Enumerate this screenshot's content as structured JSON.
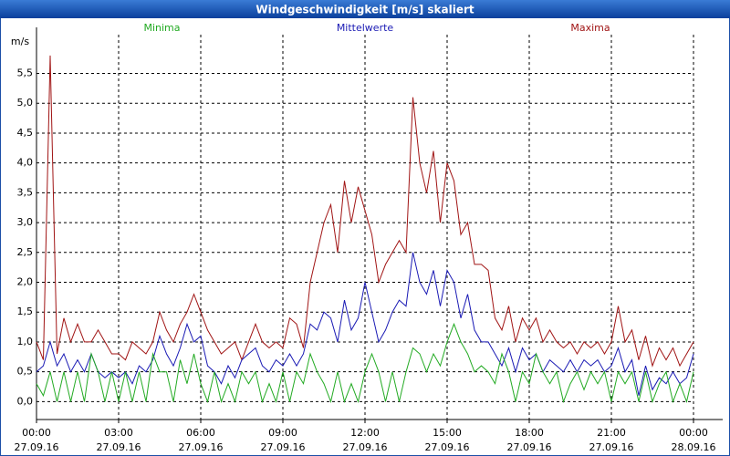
{
  "chart_data": {
    "type": "line",
    "title": "Windgeschwindigkeit [m/s] skaliert",
    "y_label": "m/s",
    "legend": "top",
    "grid": true,
    "xlim": [
      0,
      24
    ],
    "ylim": [
      -0.3,
      6.15
    ],
    "xticks": [
      {
        "value": 0,
        "label": "00:00",
        "date": "27.09.16"
      },
      {
        "value": 3,
        "label": "03:00",
        "date": "27.09.16"
      },
      {
        "value": 6,
        "label": "06:00",
        "date": "27.09.16"
      },
      {
        "value": 9,
        "label": "09:00",
        "date": "27.09.16"
      },
      {
        "value": 12,
        "label": "12:00",
        "date": "27.09.16"
      },
      {
        "value": 15,
        "label": "15:00",
        "date": "27.09.16"
      },
      {
        "value": 18,
        "label": "18:00",
        "date": "27.09.16"
      },
      {
        "value": 21,
        "label": "21:00",
        "date": "27.09.16"
      },
      {
        "value": 24,
        "label": "00:00",
        "date": "28.09.16"
      }
    ],
    "yticks": [
      {
        "value": 0,
        "label": "0,0"
      },
      {
        "value": 0.5,
        "label": "0,5"
      },
      {
        "value": 1,
        "label": "1,0"
      },
      {
        "value": 1.5,
        "label": "1,5"
      },
      {
        "value": 2,
        "label": "2,0"
      },
      {
        "value": 2.5,
        "label": "2,5"
      },
      {
        "value": 3,
        "label": "3,0"
      },
      {
        "value": 3.5,
        "label": "3,5"
      },
      {
        "value": 4,
        "label": "4,0"
      },
      {
        "value": 4.5,
        "label": "4,5"
      },
      {
        "value": 5,
        "label": "5,0"
      },
      {
        "value": 5.5,
        "label": "5,5"
      }
    ],
    "x": [
      0,
      0.25,
      0.5,
      0.75,
      1,
      1.25,
      1.5,
      1.75,
      2,
      2.25,
      2.5,
      2.75,
      3,
      3.25,
      3.5,
      3.75,
      4,
      4.25,
      4.5,
      4.75,
      5,
      5.25,
      5.5,
      5.75,
      6,
      6.25,
      6.5,
      6.75,
      7,
      7.25,
      7.5,
      7.75,
      8,
      8.25,
      8.5,
      8.75,
      9,
      9.25,
      9.5,
      9.75,
      10,
      10.25,
      10.5,
      10.75,
      11,
      11.25,
      11.5,
      11.75,
      12,
      12.25,
      12.5,
      12.75,
      13,
      13.25,
      13.5,
      13.75,
      14,
      14.25,
      14.5,
      14.75,
      15,
      15.25,
      15.5,
      15.75,
      16,
      16.25,
      16.5,
      16.75,
      17,
      17.25,
      17.5,
      17.75,
      18,
      18.25,
      18.5,
      18.75,
      19,
      19.25,
      19.5,
      19.75,
      20,
      20.25,
      20.5,
      20.75,
      21,
      21.25,
      21.5,
      21.75,
      22,
      22.25,
      22.5,
      22.75,
      23,
      23.25,
      23.5,
      23.75,
      24
    ],
    "series": [
      {
        "name": "Minima",
        "color": "#22aa22",
        "values": [
          0.3,
          0.1,
          0.5,
          0,
          0.5,
          0,
          0.5,
          0,
          0.8,
          0.5,
          0,
          0.5,
          0,
          0.5,
          0,
          0.5,
          0,
          0.8,
          0.5,
          0.5,
          0,
          0.7,
          0.3,
          0.8,
          0.3,
          0,
          0.5,
          0,
          0.3,
          0,
          0.5,
          0.3,
          0.5,
          0,
          0.3,
          0,
          0.5,
          0,
          0.5,
          0.3,
          0.8,
          0.5,
          0.3,
          0,
          0.5,
          0,
          0.3,
          0,
          0.5,
          0.8,
          0.5,
          0,
          0.5,
          0,
          0.5,
          0.9,
          0.8,
          0.5,
          0.8,
          0.6,
          1.0,
          1.3,
          1.0,
          0.8,
          0.5,
          0.6,
          0.5,
          0.3,
          0.8,
          0.5,
          0,
          0.5,
          0.3,
          0.8,
          0.5,
          0.3,
          0.5,
          0,
          0.3,
          0.5,
          0.2,
          0.5,
          0.3,
          0.5,
          0,
          0.5,
          0.3,
          0.5,
          0,
          0.5,
          0,
          0.3,
          0.5,
          0,
          0.3,
          0,
          0.5
        ]
      },
      {
        "name": "Mittelwerte",
        "color": "#1a1ab4",
        "values": [
          0.5,
          0.6,
          1.0,
          0.6,
          0.8,
          0.5,
          0.7,
          0.5,
          0.8,
          0.5,
          0.4,
          0.5,
          0.4,
          0.5,
          0.3,
          0.6,
          0.5,
          0.7,
          1.1,
          0.8,
          0.6,
          0.9,
          1.3,
          1.0,
          1.1,
          0.6,
          0.5,
          0.3,
          0.6,
          0.4,
          0.7,
          0.8,
          0.9,
          0.6,
          0.5,
          0.7,
          0.6,
          0.8,
          0.6,
          0.8,
          1.3,
          1.2,
          1.5,
          1.4,
          1.0,
          1.7,
          1.2,
          1.4,
          2.0,
          1.5,
          1.0,
          1.2,
          1.5,
          1.7,
          1.6,
          2.5,
          2.0,
          1.8,
          2.2,
          1.6,
          2.2,
          2.0,
          1.4,
          1.8,
          1.2,
          1.0,
          1.0,
          0.8,
          0.6,
          0.9,
          0.5,
          0.9,
          0.7,
          0.8,
          0.5,
          0.7,
          0.6,
          0.5,
          0.7,
          0.5,
          0.7,
          0.6,
          0.7,
          0.5,
          0.6,
          0.9,
          0.5,
          0.7,
          0.1,
          0.6,
          0.2,
          0.4,
          0.3,
          0.5,
          0.3,
          0.4,
          0.8
        ]
      },
      {
        "name": "Maxima",
        "color": "#a01414",
        "values": [
          1.0,
          0.7,
          5.8,
          0.8,
          1.4,
          1.0,
          1.3,
          1.0,
          1.0,
          1.2,
          1.0,
          0.8,
          0.8,
          0.7,
          1.0,
          0.9,
          0.8,
          1.0,
          1.5,
          1.2,
          1.0,
          1.3,
          1.5,
          1.8,
          1.5,
          1.2,
          1.0,
          0.8,
          0.9,
          1.0,
          0.7,
          1.0,
          1.3,
          1.0,
          0.9,
          1.0,
          0.9,
          1.4,
          1.3,
          0.9,
          2.0,
          2.5,
          3.0,
          3.3,
          2.5,
          3.7,
          3.0,
          3.6,
          3.2,
          2.8,
          2.0,
          2.3,
          2.5,
          2.7,
          2.5,
          5.1,
          4.0,
          3.5,
          4.2,
          3.0,
          4.0,
          3.7,
          2.8,
          3.0,
          2.3,
          2.3,
          2.2,
          1.4,
          1.2,
          1.6,
          1.0,
          1.4,
          1.2,
          1.4,
          1.0,
          1.2,
          1.0,
          0.9,
          1.0,
          0.8,
          1.0,
          0.9,
          1.0,
          0.8,
          1.0,
          1.6,
          1.0,
          1.2,
          0.7,
          1.1,
          0.6,
          0.9,
          0.7,
          0.9,
          0.6,
          0.8,
          1.0
        ]
      }
    ]
  }
}
